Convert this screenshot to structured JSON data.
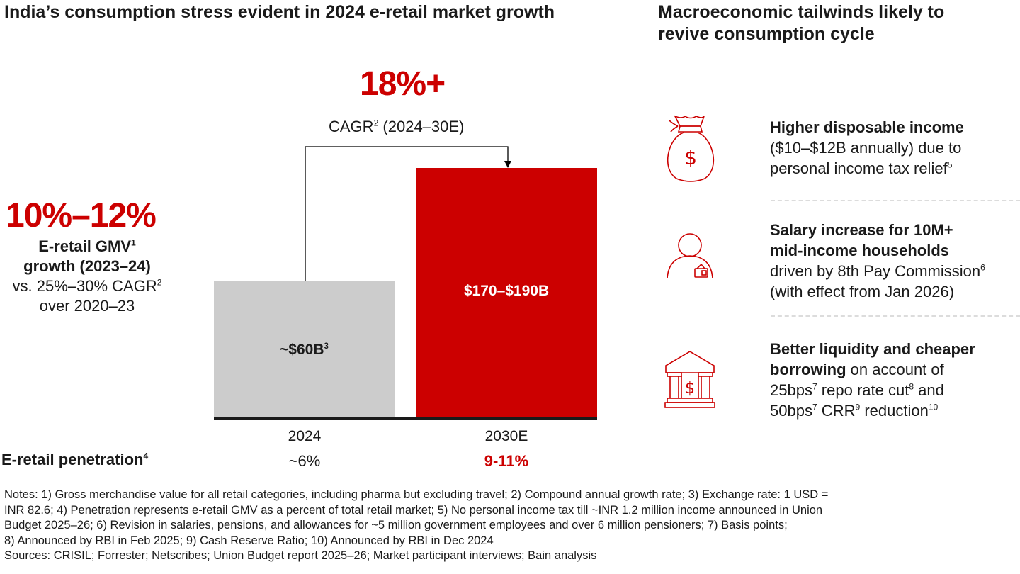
{
  "left": {
    "title": "India’s consumption stress evident in 2024 e-retail market growth",
    "growth_value": "10%–12%",
    "growth_desc_bold_1": "E-retail GMV",
    "growth_desc_bold_1_sup": "1",
    "growth_desc_bold_2": "growth (2023–24)",
    "growth_desc_3": "vs. 25%–30% CAGR",
    "growth_desc_3_sup": "2",
    "growth_desc_4": "over 2020–23",
    "cagr_value": "18%+",
    "cagr_label": "CAGR",
    "cagr_label_sup": "2",
    "cagr_period": " (2024–30E)",
    "penetration_label": "E-retail penetration",
    "penetration_sup": "4",
    "penetration_values": [
      "~6%",
      "9-11%"
    ]
  },
  "chart_data": {
    "type": "bar",
    "categories": [
      "2024",
      "2030E"
    ],
    "value_labels": [
      "~$60B",
      "$170–$190B"
    ],
    "value_label_sups": [
      "3",
      ""
    ],
    "colors": [
      "#cccccc",
      "#cc0000"
    ],
    "annotation": "18%+ CAGR (2024–30E)"
  },
  "right": {
    "title_line1": "Macroeconomic tailwinds likely to",
    "title_line2": "revive consumption cycle",
    "items": [
      {
        "icon": "money-bag-icon",
        "bold": "Higher disposable income",
        "text1": "($10–$12B annually) due to",
        "text2": "personal income tax relief",
        "sup": "5"
      },
      {
        "icon": "person-wallet-icon",
        "bold1": "Salary increase for 10M+",
        "bold2": "mid-income households",
        "text1": "driven by 8th Pay Commission",
        "sup": "6",
        "text2": "(with effect from Jan 2026)"
      },
      {
        "icon": "bank-icon",
        "bold1": "Better liquidity and cheaper",
        "bold2": "borrowing",
        "text_after_bold2": " on account of",
        "line3a": "25bps",
        "line3a_sup": "7",
        "line3b": " repo rate cut",
        "line3b_sup": "8",
        "line3c": " and",
        "line4a": "50bps",
        "line4a_sup": "7",
        "line4b": " CRR",
        "line4b_sup": "9",
        "line4c": " reduction",
        "line4c_sup": "10"
      }
    ]
  },
  "notes": {
    "lines": [
      "Notes: 1) Gross merchandise value for all retail categories, including pharma but excluding travel; 2) Compound annual growth rate; 3) Exchange rate: 1 USD =",
      "INR 82.6; 4) Penetration represents e-retail GMV as a percent of total retail market; 5) No personal income tax till ~INR 1.2 million income announced in Union",
      "Budget 2025–26; 6) Revision in salaries, pensions, and allowances for ~5 million government employees and over 6 million pensioners; 7) Basis points;",
      "8) Announced by RBI in Feb 2025; 9) Cash Reserve Ratio; 10) Announced by RBI in Dec 2024"
    ],
    "sources": "Sources: CRISIL; Forrester; Netscribes; Union Budget report 2025–26; Market participant interviews; Bain analysis"
  }
}
